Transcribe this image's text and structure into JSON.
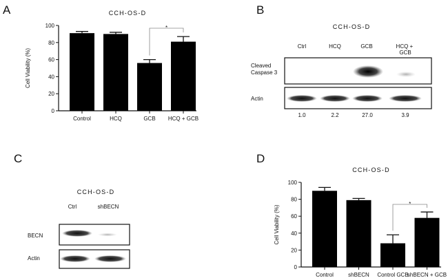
{
  "panels": {
    "A": {
      "letter": "A"
    },
    "B": {
      "letter": "B",
      "title": "CCH-OS-D",
      "lanes": [
        "Ctrl",
        "HCQ",
        "GCB",
        "HCQ +\nGCB"
      ],
      "rows": [
        "Cleaved\nCaspase 3",
        "Actin"
      ],
      "values": [
        "1.0",
        "2.2",
        "27.0",
        "3.9"
      ]
    },
    "C": {
      "letter": "C",
      "title": "CCH-OS-D",
      "lanes": [
        "Ctrl",
        "shBECN"
      ],
      "rows": [
        "BECN",
        "Actin"
      ]
    },
    "D": {
      "letter": "D"
    }
  },
  "chart_data": [
    {
      "panel": "A",
      "type": "bar",
      "title": "CCH-OS-D",
      "ylabel": "Cell Viability (%)",
      "xlabel": "",
      "ylim": [
        0,
        100
      ],
      "yticks": [
        0,
        20,
        40,
        60,
        80,
        100
      ],
      "categories": [
        "Control",
        "HCQ",
        "GCB",
        "HCQ + GCB"
      ],
      "values": [
        91,
        90,
        56,
        81
      ],
      "errors": [
        2,
        2,
        4,
        6
      ],
      "significance": [
        {
          "from": 2,
          "to": 3,
          "label": "*"
        }
      ],
      "color": "#000000"
    },
    {
      "panel": "D",
      "type": "bar",
      "title": "CCH-OS-D",
      "ylabel": "Cell Viability (%)",
      "xlabel": "",
      "ylim": [
        0,
        100
      ],
      "yticks": [
        0,
        20,
        40,
        60,
        80,
        100
      ],
      "categories": [
        "Control",
        "shBECN",
        "Control GCB",
        "shBECN + GCB"
      ],
      "values": [
        90,
        79,
        28,
        58
      ],
      "errors": [
        4,
        2,
        10,
        7
      ],
      "significance": [
        {
          "from": 2,
          "to": 3,
          "label": "*"
        }
      ],
      "color": "#000000"
    }
  ]
}
